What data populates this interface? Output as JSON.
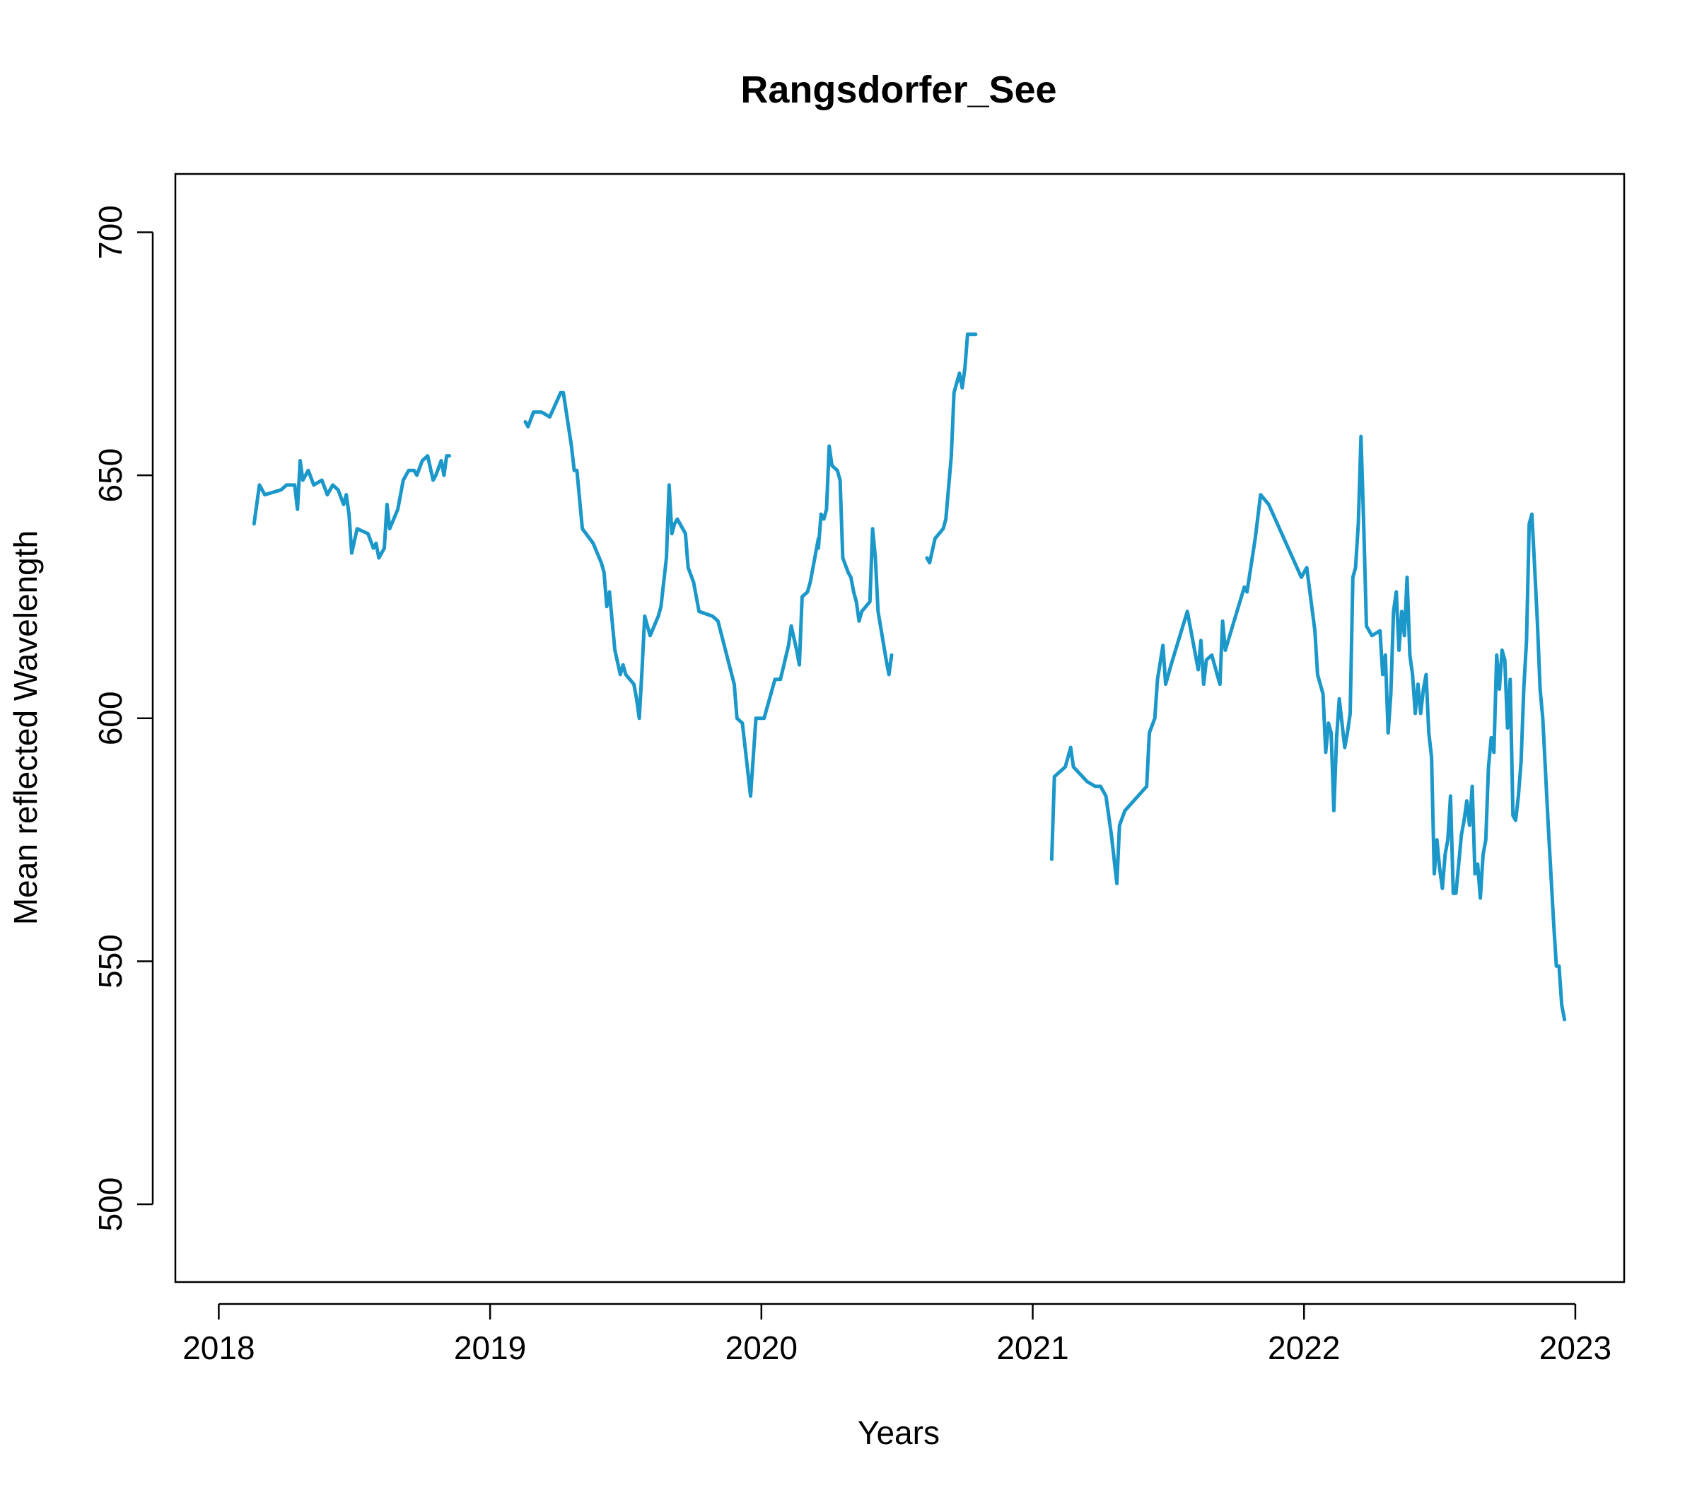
{
  "chart_data": {
    "type": "line",
    "title": "Rangsdorfer_See",
    "xlabel": "Years",
    "ylabel": "Mean reflected Wavelength",
    "xlim": [
      2017.84,
      2023.18
    ],
    "ylim": [
      484,
      712
    ],
    "x_ticks": [
      2018,
      2019,
      2020,
      2021,
      2022,
      2023
    ],
    "x_tick_labels": [
      "2018",
      "2019",
      "2020",
      "2021",
      "2022",
      "2023"
    ],
    "y_ticks": [
      500,
      550,
      600,
      650,
      700
    ],
    "y_tick_labels": [
      "500",
      "550",
      "600",
      "650",
      "700"
    ],
    "grid": false,
    "legend": "none",
    "line_color": "#1b98c9",
    "series": [
      {
        "segments": [
          [
            [
              2018.13,
              640
            ],
            [
              2018.15,
              648
            ],
            [
              2018.17,
              646
            ],
            [
              2018.23,
              647
            ],
            [
              2018.25,
              648
            ],
            [
              2018.28,
              648
            ],
            [
              2018.29,
              643
            ],
            [
              2018.3,
              653
            ],
            [
              2018.31,
              649
            ],
            [
              2018.33,
              651
            ],
            [
              2018.35,
              648
            ],
            [
              2018.38,
              649
            ],
            [
              2018.4,
              646
            ],
            [
              2018.42,
              648
            ],
            [
              2018.44,
              647
            ],
            [
              2018.46,
              644
            ],
            [
              2018.47,
              646
            ],
            [
              2018.48,
              642
            ],
            [
              2018.49,
              634
            ],
            [
              2018.51,
              639
            ],
            [
              2018.55,
              638
            ],
            [
              2018.57,
              635
            ],
            [
              2018.58,
              636
            ],
            [
              2018.59,
              633
            ],
            [
              2018.61,
              635
            ],
            [
              2018.62,
              644
            ],
            [
              2018.63,
              639
            ],
            [
              2018.66,
              643
            ],
            [
              2018.68,
              649
            ],
            [
              2018.7,
              651
            ],
            [
              2018.72,
              651
            ],
            [
              2018.73,
              650
            ],
            [
              2018.75,
              653
            ],
            [
              2018.77,
              654
            ],
            [
              2018.79,
              649
            ],
            [
              2018.8,
              650
            ],
            [
              2018.82,
              653
            ],
            [
              2018.83,
              650
            ],
            [
              2018.84,
              654
            ],
            [
              2018.85,
              654
            ]
          ],
          [
            [
              2019.13,
              661
            ],
            [
              2019.14,
              660
            ],
            [
              2019.16,
              663
            ],
            [
              2019.19,
              663
            ],
            [
              2019.22,
              662
            ],
            [
              2019.26,
              667
            ],
            [
              2019.27,
              667
            ],
            [
              2019.3,
              656
            ],
            [
              2019.31,
              651
            ],
            [
              2019.32,
              651
            ],
            [
              2019.34,
              639
            ],
            [
              2019.38,
              636
            ],
            [
              2019.41,
              632
            ],
            [
              2019.42,
              630
            ],
            [
              2019.43,
              623
            ],
            [
              2019.44,
              626
            ],
            [
              2019.46,
              614
            ],
            [
              2019.48,
              609
            ],
            [
              2019.49,
              611
            ],
            [
              2019.5,
              609
            ],
            [
              2019.53,
              607
            ],
            [
              2019.54,
              604
            ],
            [
              2019.55,
              600
            ],
            [
              2019.56,
              610
            ],
            [
              2019.57,
              621
            ],
            [
              2019.59,
              617
            ],
            [
              2019.62,
              621
            ],
            [
              2019.63,
              623
            ],
            [
              2019.65,
              633
            ],
            [
              2019.66,
              648
            ],
            [
              2019.67,
              638
            ],
            [
              2019.68,
              640
            ],
            [
              2019.69,
              641
            ],
            [
              2019.72,
              638
            ],
            [
              2019.73,
              631
            ],
            [
              2019.75,
              628
            ],
            [
              2019.77,
              622
            ],
            [
              2019.82,
              621
            ],
            [
              2019.84,
              620
            ],
            [
              2019.9,
              607
            ],
            [
              2019.91,
              600
            ],
            [
              2019.93,
              599
            ],
            [
              2019.94,
              594
            ],
            [
              2019.96,
              584
            ],
            [
              2019.98,
              600
            ],
            [
              2019.99,
              600
            ],
            [
              2020.01,
              600
            ],
            [
              2020.03,
              604
            ],
            [
              2020.05,
              608
            ],
            [
              2020.07,
              608
            ],
            [
              2020.1,
              615
            ],
            [
              2020.11,
              619
            ],
            [
              2020.13,
              614
            ],
            [
              2020.14,
              611
            ],
            [
              2020.15,
              625
            ],
            [
              2020.17,
              626
            ],
            [
              2020.18,
              628
            ],
            [
              2020.2,
              634
            ],
            [
              2020.21,
              637
            ],
            [
              2020.21,
              635
            ],
            [
              2020.22,
              642
            ],
            [
              2020.23,
              641
            ],
            [
              2020.24,
              643
            ],
            [
              2020.25,
              656
            ],
            [
              2020.26,
              652
            ],
            [
              2020.28,
              651
            ],
            [
              2020.29,
              649
            ],
            [
              2020.3,
              633
            ],
            [
              2020.32,
              630
            ],
            [
              2020.33,
              629
            ],
            [
              2020.34,
              626
            ],
            [
              2020.35,
              624
            ],
            [
              2020.36,
              620
            ],
            [
              2020.37,
              622
            ],
            [
              2020.4,
              624
            ],
            [
              2020.41,
              639
            ],
            [
              2020.42,
              633
            ],
            [
              2020.43,
              622
            ],
            [
              2020.46,
              612
            ],
            [
              2020.47,
              609
            ],
            [
              2020.48,
              613
            ]
          ],
          [
            [
              2020.61,
              633
            ],
            [
              2020.62,
              632
            ],
            [
              2020.64,
              637
            ],
            [
              2020.67,
              639
            ],
            [
              2020.68,
              641
            ],
            [
              2020.7,
              654
            ],
            [
              2020.71,
              667
            ],
            [
              2020.73,
              671
            ],
            [
              2020.74,
              668
            ],
            [
              2020.75,
              672
            ],
            [
              2020.76,
              679
            ],
            [
              2020.79,
              679
            ]
          ],
          [
            [
              2021.07,
              571
            ],
            [
              2021.08,
              588
            ],
            [
              2021.12,
              590
            ],
            [
              2021.14,
              594
            ],
            [
              2021.15,
              590
            ],
            [
              2021.2,
              587
            ],
            [
              2021.23,
              586
            ],
            [
              2021.25,
              586
            ],
            [
              2021.27,
              584
            ],
            [
              2021.29,
              576
            ],
            [
              2021.31,
              566
            ],
            [
              2021.32,
              578
            ],
            [
              2021.34,
              581
            ],
            [
              2021.42,
              586
            ],
            [
              2021.43,
              597
            ],
            [
              2021.45,
              600
            ],
            [
              2021.46,
              608
            ],
            [
              2021.48,
              615
            ],
            [
              2021.49,
              607
            ],
            [
              2021.5,
              609
            ],
            [
              2021.51,
              611
            ],
            [
              2021.57,
              622
            ],
            [
              2021.59,
              616
            ],
            [
              2021.61,
              610
            ],
            [
              2021.62,
              616
            ],
            [
              2021.63,
              607
            ],
            [
              2021.64,
              612
            ],
            [
              2021.66,
              613
            ],
            [
              2021.68,
              609
            ],
            [
              2021.69,
              607
            ],
            [
              2021.7,
              620
            ],
            [
              2021.71,
              614
            ],
            [
              2021.78,
              627
            ],
            [
              2021.79,
              626
            ],
            [
              2021.82,
              637
            ],
            [
              2021.84,
              646
            ],
            [
              2021.87,
              644
            ],
            [
              2021.99,
              629
            ],
            [
              2022.01,
              631
            ],
            [
              2022.04,
              618
            ],
            [
              2022.05,
              609
            ],
            [
              2022.07,
              605
            ],
            [
              2022.08,
              593
            ],
            [
              2022.09,
              599
            ],
            [
              2022.1,
              597
            ],
            [
              2022.11,
              581
            ],
            [
              2022.12,
              596
            ],
            [
              2022.13,
              604
            ],
            [
              2022.15,
              594
            ],
            [
              2022.16,
              597
            ],
            [
              2022.17,
              601
            ],
            [
              2022.18,
              629
            ],
            [
              2022.19,
              631
            ],
            [
              2022.2,
              640
            ],
            [
              2022.21,
              658
            ],
            [
              2022.22,
              640
            ],
            [
              2022.23,
              619
            ],
            [
              2022.25,
              617
            ],
            [
              2022.28,
              618
            ],
            [
              2022.29,
              609
            ],
            [
              2022.3,
              613
            ],
            [
              2022.31,
              597
            ],
            [
              2022.32,
              605
            ],
            [
              2022.33,
              622
            ],
            [
              2022.34,
              626
            ],
            [
              2022.35,
              614
            ],
            [
              2022.36,
              622
            ],
            [
              2022.37,
              617
            ],
            [
              2022.38,
              629
            ],
            [
              2022.39,
              613
            ],
            [
              2022.4,
              609
            ],
            [
              2022.41,
              601
            ],
            [
              2022.42,
              607
            ],
            [
              2022.43,
              601
            ],
            [
              2022.44,
              606
            ],
            [
              2022.45,
              609
            ],
            [
              2022.46,
              597
            ],
            [
              2022.47,
              592
            ],
            [
              2022.48,
              568
            ],
            [
              2022.49,
              575
            ],
            [
              2022.5,
              569
            ],
            [
              2022.51,
              565
            ],
            [
              2022.52,
              572
            ],
            [
              2022.53,
              575
            ],
            [
              2022.54,
              584
            ],
            [
              2022.55,
              564
            ],
            [
              2022.56,
              564
            ],
            [
              2022.58,
              576
            ],
            [
              2022.59,
              579
            ],
            [
              2022.6,
              583
            ],
            [
              2022.61,
              578
            ],
            [
              2022.62,
              586
            ],
            [
              2022.63,
              568
            ],
            [
              2022.64,
              570
            ],
            [
              2022.65,
              563
            ],
            [
              2022.66,
              572
            ],
            [
              2022.67,
              575
            ],
            [
              2022.68,
              590
            ],
            [
              2022.69,
              596
            ],
            [
              2022.7,
              593
            ],
            [
              2022.71,
              613
            ],
            [
              2022.72,
              606
            ],
            [
              2022.73,
              614
            ],
            [
              2022.74,
              612
            ],
            [
              2022.75,
              598
            ],
            [
              2022.76,
              608
            ],
            [
              2022.77,
              580
            ],
            [
              2022.78,
              579
            ],
            [
              2022.79,
              584
            ],
            [
              2022.8,
              591
            ],
            [
              2022.81,
              606
            ],
            [
              2022.82,
              616
            ],
            [
              2022.83,
              640
            ],
            [
              2022.84,
              642
            ],
            [
              2022.85,
              631
            ],
            [
              2022.86,
              620
            ],
            [
              2022.87,
              606
            ],
            [
              2022.88,
              600
            ],
            [
              2022.9,
              578
            ],
            [
              2022.92,
              558
            ],
            [
              2022.93,
              549
            ],
            [
              2022.94,
              549
            ],
            [
              2022.95,
              541
            ],
            [
              2022.96,
              538
            ]
          ]
        ]
      }
    ]
  }
}
